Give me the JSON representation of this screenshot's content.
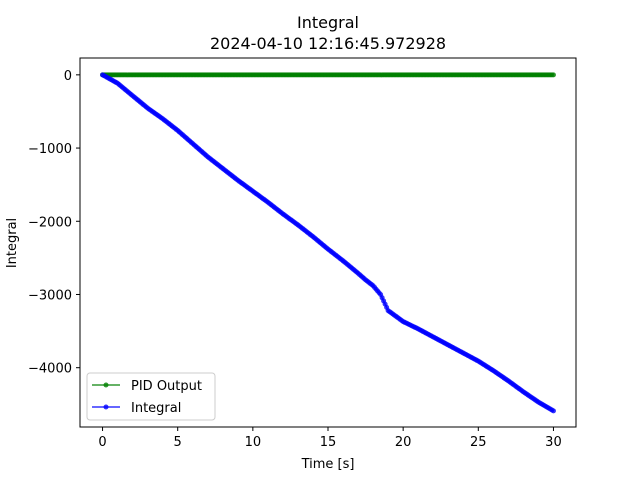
{
  "chart_data": {
    "type": "line",
    "title": "Integral",
    "subtitle": "2024-04-10 12:16:45.972928",
    "xlabel": "Time [s]",
    "ylabel": "Integral",
    "xlim": [
      -1.5,
      31.5
    ],
    "ylim": [
      -4810,
      230
    ],
    "xticks": [
      0,
      5,
      10,
      15,
      20,
      25,
      30
    ],
    "xtick_labels": [
      "0",
      "5",
      "10",
      "15",
      "20",
      "25",
      "30"
    ],
    "yticks": [
      0,
      -1000,
      -2000,
      -3000,
      -4000
    ],
    "ytick_labels": [
      "0",
      "−1000",
      "−2000",
      "−3000",
      "−4000"
    ],
    "grid": false,
    "legend_position": "lower-left",
    "series": [
      {
        "name": "PID Output",
        "color": "#008000",
        "x": [
          0,
          5,
          10,
          15,
          20,
          25,
          30
        ],
        "y": [
          0,
          0,
          0,
          0,
          0,
          0,
          0
        ]
      },
      {
        "name": "Integral",
        "color": "#0000ff",
        "x": [
          0,
          1,
          2,
          3,
          4,
          5,
          6,
          7,
          8,
          9,
          10,
          11,
          12,
          13,
          14,
          15,
          16,
          17,
          17.5,
          18,
          18.5,
          19,
          20,
          21,
          22,
          23,
          24,
          25,
          26,
          27,
          28,
          29,
          30
        ],
        "y": [
          0,
          -115,
          -285,
          -455,
          -600,
          -760,
          -940,
          -1120,
          -1280,
          -1440,
          -1590,
          -1740,
          -1900,
          -2050,
          -2210,
          -2380,
          -2540,
          -2710,
          -2800,
          -2880,
          -3000,
          -3220,
          -3370,
          -3470,
          -3580,
          -3690,
          -3800,
          -3910,
          -4040,
          -4180,
          -4330,
          -4470,
          -4590
        ]
      }
    ]
  }
}
